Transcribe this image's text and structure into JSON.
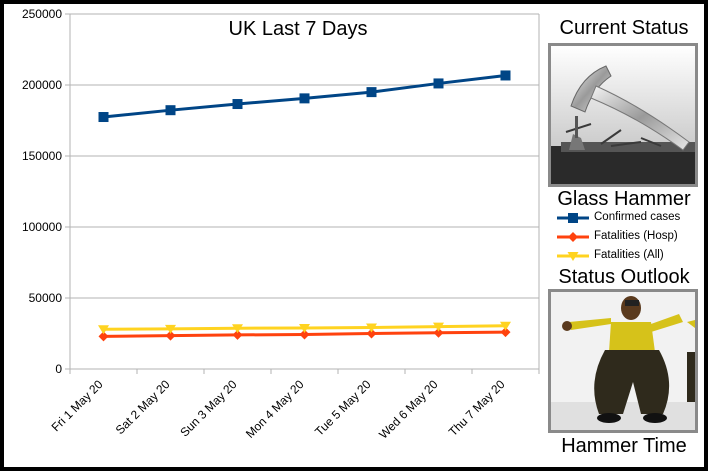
{
  "chart_data": {
    "type": "line",
    "title": "UK Last 7 Days",
    "categories": [
      "Fri 1 May 20",
      "Sat 2 May 20",
      "Sun 3 May 20",
      "Mon 4 May 20",
      "Tue 5 May 20",
      "Wed 6 May 20",
      "Thu 7 May 20"
    ],
    "series": [
      {
        "name": "Confirmed cases",
        "values": [
          177454,
          182260,
          186599,
          190584,
          194990,
          201101,
          206715
        ],
        "color": "#004586",
        "marker": "square"
      },
      {
        "name": "Fatalities (Hosp)",
        "values": [
          23000,
          23500,
          24000,
          24300,
          25000,
          25500,
          26000
        ],
        "color": "#ff420e",
        "marker": "diamond"
      },
      {
        "name": "Fatalities (All)",
        "values": [
          28000,
          28300,
          28700,
          28900,
          29200,
          29800,
          30500
        ],
        "color": "#ffd320",
        "marker": "triangle-down"
      }
    ],
    "yticks": [
      0,
      50000,
      100000,
      150000,
      200000,
      250000
    ],
    "ylim": [
      0,
      250000
    ],
    "grid": true,
    "legend_position": "right"
  },
  "sidebar": {
    "current_status_title": "Current Status",
    "glass_hammer_caption": "Glass Hammer",
    "status_outlook_title": "Status Outlook",
    "hammer_time_caption": "Hammer Time"
  }
}
